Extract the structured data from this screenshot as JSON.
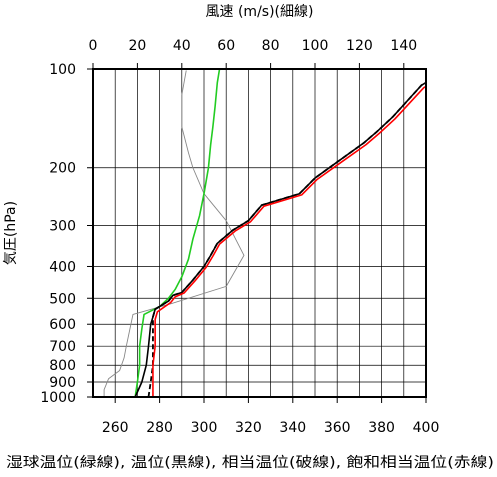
{
  "chart_data": {
    "type": "line",
    "top_axis": {
      "title": "風速 (m/s)(細線)",
      "range": [
        0,
        150
      ],
      "ticks": [
        0,
        20,
        40,
        60,
        80,
        100,
        120,
        140
      ]
    },
    "bottom_axis": {
      "title": "湿球温位(緑線), 温位(黒線), 相当温位(破線), 飽和相当温位(赤線)",
      "range": [
        250,
        400
      ],
      "ticks": [
        260,
        280,
        300,
        320,
        340,
        360,
        380,
        400
      ]
    },
    "y_axis": {
      "title": "気圧(hPa)",
      "scale": "log",
      "inverted": true,
      "range": [
        1000,
        100
      ],
      "ticks": [
        100,
        200,
        300,
        400,
        500,
        600,
        700,
        800,
        900,
        1000
      ]
    },
    "grid": true,
    "series": [
      {
        "name": "風速",
        "axis": "top",
        "color": "#888888",
        "style": "thin",
        "points": [
          [
            5,
            1000
          ],
          [
            5,
            950
          ],
          [
            7,
            880
          ],
          [
            12,
            830
          ],
          [
            14,
            760
          ],
          [
            15,
            700
          ],
          [
            16,
            650
          ],
          [
            18,
            560
          ],
          [
            35,
            520
          ],
          [
            60,
            460
          ],
          [
            68,
            370
          ],
          [
            60,
            290
          ],
          [
            50,
            240
          ],
          [
            45,
            200
          ],
          [
            43,
            180
          ],
          [
            40,
            150
          ],
          [
            40,
            120
          ],
          [
            42,
            101
          ]
        ]
      },
      {
        "name": "湿球温位",
        "axis": "bottom",
        "color": "#22cc22",
        "style": "solid",
        "points": [
          [
            269,
            1000
          ],
          [
            270,
            900
          ],
          [
            271,
            800
          ],
          [
            271,
            700
          ],
          [
            272,
            620
          ],
          [
            273,
            560
          ],
          [
            280,
            530
          ],
          [
            284,
            500
          ],
          [
            287,
            470
          ],
          [
            290,
            430
          ],
          [
            293,
            380
          ],
          [
            295,
            330
          ],
          [
            298,
            280
          ],
          [
            300,
            240
          ],
          [
            302,
            200
          ],
          [
            303,
            170
          ],
          [
            304,
            150
          ],
          [
            305,
            130
          ],
          [
            306,
            110
          ],
          [
            307,
            100
          ]
        ]
      },
      {
        "name": "温位",
        "axis": "bottom",
        "color": "#000000",
        "style": "solid",
        "points": [
          [
            269,
            1000
          ],
          [
            272,
            900
          ],
          [
            274,
            800
          ],
          [
            275,
            700
          ],
          [
            276,
            600
          ],
          [
            277,
            570
          ],
          [
            278,
            540
          ],
          [
            284,
            510
          ],
          [
            286,
            490
          ],
          [
            290,
            480
          ],
          [
            295,
            440
          ],
          [
            300,
            400
          ],
          [
            303,
            370
          ],
          [
            306,
            340
          ],
          [
            313,
            310
          ],
          [
            320,
            290
          ],
          [
            326,
            260
          ],
          [
            343,
            240
          ],
          [
            350,
            215
          ],
          [
            361,
            190
          ],
          [
            372,
            168
          ],
          [
            378,
            155
          ],
          [
            385,
            140
          ],
          [
            398,
            112
          ],
          [
            400,
            110
          ]
        ]
      },
      {
        "name": "相当温位",
        "axis": "bottom",
        "color": "#000000",
        "style": "dashed",
        "points": [
          [
            275,
            1000
          ],
          [
            276,
            900
          ],
          [
            277,
            800
          ],
          [
            277,
            700
          ],
          [
            277,
            600
          ],
          [
            277,
            570
          ],
          [
            278,
            540
          ],
          [
            284,
            510
          ],
          [
            286,
            490
          ],
          [
            290,
            480
          ],
          [
            295,
            440
          ],
          [
            300,
            400
          ],
          [
            303,
            370
          ],
          [
            306,
            340
          ],
          [
            313,
            310
          ],
          [
            320,
            290
          ],
          [
            326,
            260
          ],
          [
            343,
            240
          ],
          [
            350,
            215
          ],
          [
            361,
            190
          ],
          [
            372,
            168
          ],
          [
            378,
            155
          ],
          [
            385,
            140
          ],
          [
            398,
            112
          ],
          [
            400,
            110
          ]
        ]
      },
      {
        "name": "飽和相当温位",
        "axis": "bottom",
        "color": "#ff0000",
        "style": "solid",
        "points": [
          [
            277,
            1000
          ],
          [
            277,
            900
          ],
          [
            277,
            800
          ],
          [
            278,
            700
          ],
          [
            278,
            620
          ],
          [
            278,
            580
          ],
          [
            279,
            550
          ],
          [
            285,
            515
          ],
          [
            287,
            495
          ],
          [
            291,
            482
          ],
          [
            296,
            442
          ],
          [
            301,
            402
          ],
          [
            304,
            372
          ],
          [
            307,
            342
          ],
          [
            314,
            312
          ],
          [
            321,
            292
          ],
          [
            327,
            262
          ],
          [
            344,
            242
          ],
          [
            351,
            217
          ],
          [
            362,
            192
          ],
          [
            373,
            170
          ],
          [
            379,
            157
          ],
          [
            386,
            142
          ],
          [
            399,
            114
          ],
          [
            400,
            113
          ]
        ]
      }
    ]
  }
}
